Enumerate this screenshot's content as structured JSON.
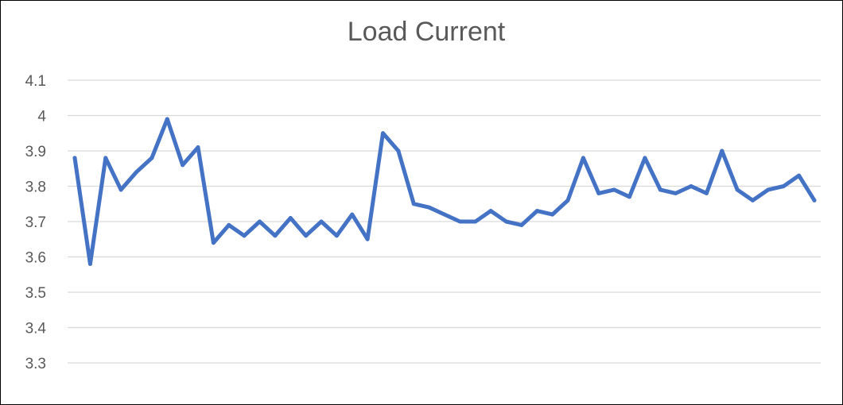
{
  "chart_data": {
    "type": "line",
    "title": "Load Current",
    "xlabel": "",
    "ylabel": "",
    "ylim": [
      3.3,
      4.1
    ],
    "yticks": [
      "3.3",
      "3.4",
      "3.5",
      "3.6",
      "3.7",
      "3.8",
      "3.9",
      "4",
      "4.1"
    ],
    "grid": true,
    "legend": "none",
    "series": [
      {
        "color": "#4472C4",
        "values": [
          3.88,
          3.58,
          3.88,
          3.79,
          3.84,
          3.88,
          3.99,
          3.86,
          3.91,
          3.64,
          3.69,
          3.66,
          3.7,
          3.66,
          3.71,
          3.66,
          3.7,
          3.66,
          3.72,
          3.65,
          3.95,
          3.9,
          3.75,
          3.74,
          3.72,
          3.7,
          3.7,
          3.73,
          3.7,
          3.69,
          3.73,
          3.72,
          3.76,
          3.88,
          3.78,
          3.79,
          3.77,
          3.88,
          3.79,
          3.78,
          3.8,
          3.78,
          3.9,
          3.79,
          3.76,
          3.79,
          3.8,
          3.83,
          3.76
        ]
      }
    ]
  },
  "colors": {
    "grid": "#D9D9D9",
    "text": "#595959",
    "border": "#000000"
  }
}
